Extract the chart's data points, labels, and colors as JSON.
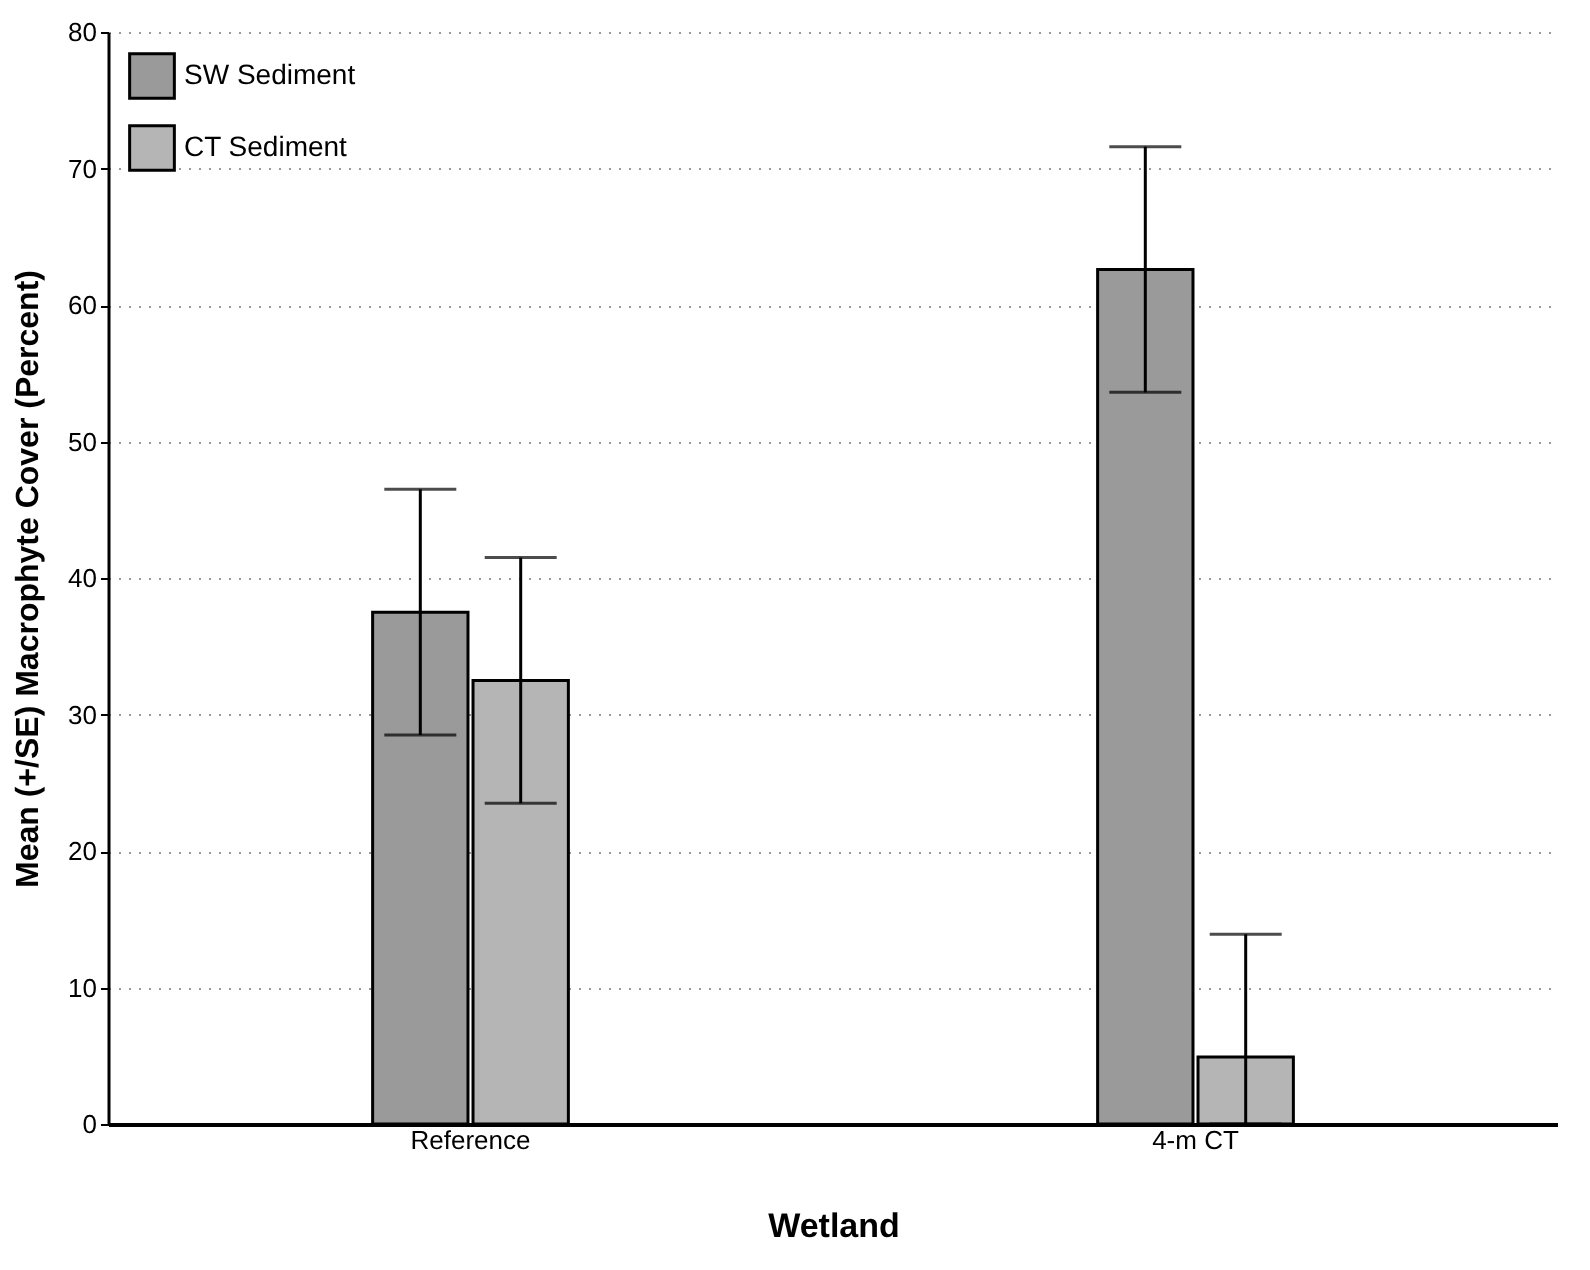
{
  "chart_data": {
    "type": "bar",
    "xlabel": "Wetland",
    "ylabel": "Mean (+/SE) Macrophyte Cover (Percent)",
    "categories": [
      "Reference",
      "4-m CT"
    ],
    "series": [
      {
        "name": "SW Sediment",
        "color": "#9a9a9a",
        "values": [
          37.5,
          62.6
        ],
        "errors": [
          9,
          9
        ]
      },
      {
        "name": "CT Sediment",
        "color": "#b5b5b5",
        "values": [
          32.5,
          4.9
        ],
        "errors": [
          9,
          [
            0,
            13.9
          ]
        ]
      }
    ],
    "ylim": [
      0,
      80
    ],
    "yticks": [
      0,
      10,
      20,
      30,
      40,
      50,
      60,
      70,
      80
    ],
    "grid": "y",
    "legend": "top left"
  }
}
